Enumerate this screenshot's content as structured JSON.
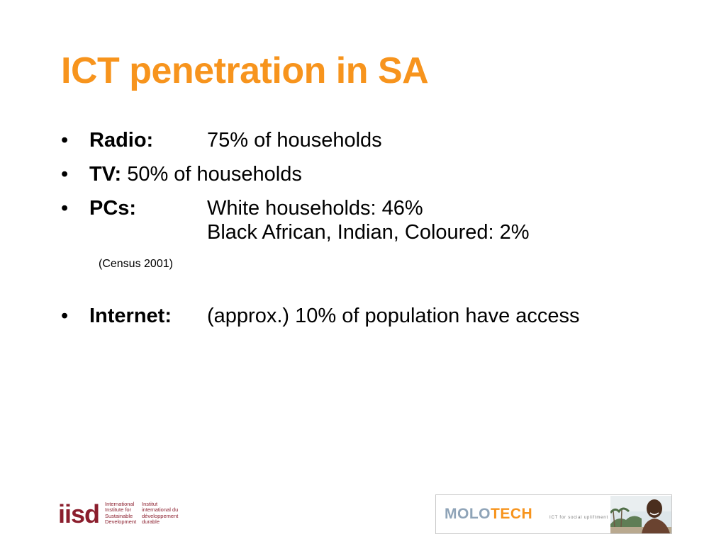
{
  "slide": {
    "title": "ICT penetration in SA",
    "bullet_char": "•",
    "radio": {
      "label": "Radio:",
      "value": "75% of households"
    },
    "tv": {
      "label": "TV:",
      "value": "50% of households"
    },
    "pcs": {
      "label": "PCs:",
      "value_line1": "White households: 46%",
      "value_line2": "Black African, Indian, Coloured: 2%"
    },
    "note": "(Census 2001)",
    "internet": {
      "label": "Internet:",
      "value": "(approx.) 10% of population have access"
    }
  },
  "footer": {
    "iisd": {
      "letters": "iisd",
      "en_lines": [
        "International",
        "Institute for",
        "Sustainable",
        "Development"
      ],
      "fr_lines": [
        "Institut",
        "international du",
        "développement",
        "durable"
      ],
      "color": "#8b1e2d"
    },
    "molotech": {
      "word_part1": "MOLO",
      "word_part2": "TECH",
      "tagline": "ICT for social upliftment",
      "colors": {
        "molo": "#8fa4b8",
        "tech": "#f7941d"
      }
    }
  },
  "colors": {
    "title": "#f7941d",
    "text": "#000000",
    "background": "#ffffff"
  }
}
